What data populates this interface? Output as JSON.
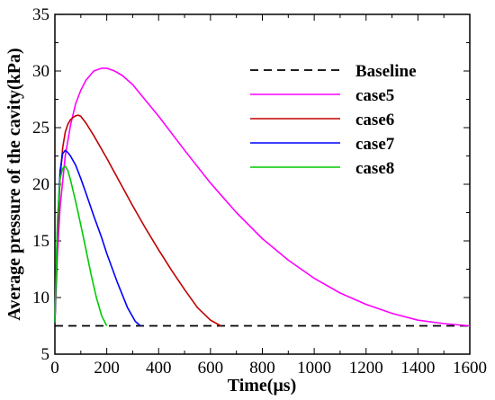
{
  "chart_data": {
    "type": "line",
    "xlabel": "Time(μs)",
    "ylabel": "Average pressure of the cavity(kPa)",
    "xlim": [
      0,
      1600
    ],
    "ylim": [
      5,
      35
    ],
    "xticks": [
      "0",
      "200",
      "400",
      "600",
      "800",
      "1000",
      "1200",
      "1400",
      "1600"
    ],
    "yticks": [
      "5",
      "10",
      "15",
      "20",
      "25",
      "30",
      "35"
    ],
    "grid": false,
    "legend_position": "top-right",
    "series": [
      {
        "name": "Baseline",
        "color": "#000000",
        "dash": "dashed",
        "x": [
          0,
          1600
        ],
        "y": [
          7.5,
          7.5
        ]
      },
      {
        "name": "case5",
        "color": "#ff00ff",
        "dash": "solid",
        "x": [
          0,
          10,
          20,
          40,
          60,
          80,
          100,
          120,
          150,
          180,
          200,
          230,
          260,
          300,
          400,
          500,
          600,
          700,
          800,
          900,
          1000,
          1100,
          1200,
          1300,
          1400,
          1500,
          1600
        ],
        "y": [
          7.8,
          14,
          18,
          22.5,
          25.2,
          27.1,
          28.3,
          29.2,
          30.0,
          30.25,
          30.25,
          30.0,
          29.6,
          28.8,
          26.0,
          23.0,
          20.1,
          17.5,
          15.2,
          13.3,
          11.7,
          10.4,
          9.4,
          8.6,
          8.0,
          7.7,
          7.5
        ]
      },
      {
        "name": "case6",
        "color": "#c00000",
        "dash": "solid",
        "x": [
          0,
          10,
          20,
          30,
          40,
          50,
          60,
          70,
          80,
          90,
          100,
          120,
          150,
          200,
          250,
          300,
          350,
          400,
          450,
          500,
          550,
          600,
          640
        ],
        "y": [
          7.8,
          15.5,
          20.5,
          23.2,
          24.6,
          25.3,
          25.7,
          25.9,
          26.05,
          26.1,
          26.0,
          25.4,
          24.3,
          22.3,
          20.2,
          18.1,
          16.1,
          14.2,
          12.4,
          10.7,
          9.1,
          8.0,
          7.5
        ]
      },
      {
        "name": "case7",
        "color": "#0000ff",
        "dash": "solid",
        "x": [
          0,
          10,
          20,
          30,
          40,
          50,
          60,
          80,
          100,
          120,
          150,
          180,
          200,
          240,
          280,
          310,
          330
        ],
        "y": [
          7.8,
          16.5,
          21.2,
          22.7,
          23.0,
          22.8,
          22.5,
          21.7,
          20.5,
          19.2,
          17.2,
          15.3,
          13.9,
          11.4,
          9.1,
          7.9,
          7.5
        ]
      },
      {
        "name": "case8",
        "color": "#00cc00",
        "dash": "solid",
        "x": [
          0,
          10,
          20,
          30,
          40,
          50,
          60,
          80,
          100,
          120,
          140,
          160,
          180,
          200
        ],
        "y": [
          7.8,
          17,
          20.5,
          21.4,
          21.6,
          21.2,
          20.4,
          18.5,
          16.4,
          14.2,
          12.0,
          10.0,
          8.4,
          7.5
        ]
      }
    ]
  }
}
